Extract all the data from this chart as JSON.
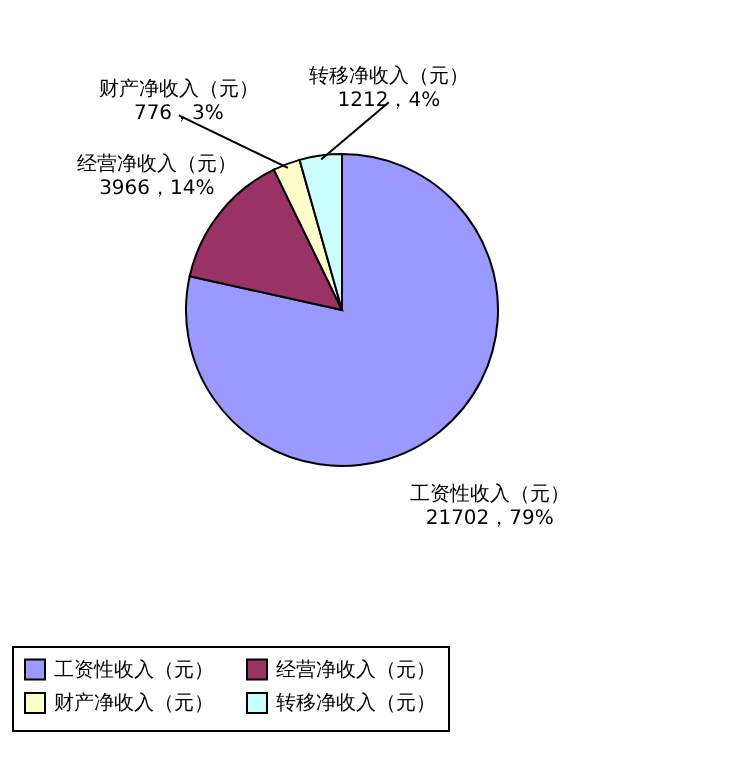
{
  "chart_data": {
    "type": "pie",
    "categories": [
      "工资性收入（元）",
      "经营净收入（元）",
      "财产净收入（元）",
      "转移净收入（元）"
    ],
    "values": [
      21702,
      3966,
      776,
      1212
    ],
    "colors": [
      "#9999ff",
      "#993366",
      "#ffffcc",
      "#ccffff"
    ],
    "value_labels": [
      "21702，79%",
      "3966，14%",
      "776，3%",
      "1212，4%"
    ],
    "legend": "bottom"
  }
}
